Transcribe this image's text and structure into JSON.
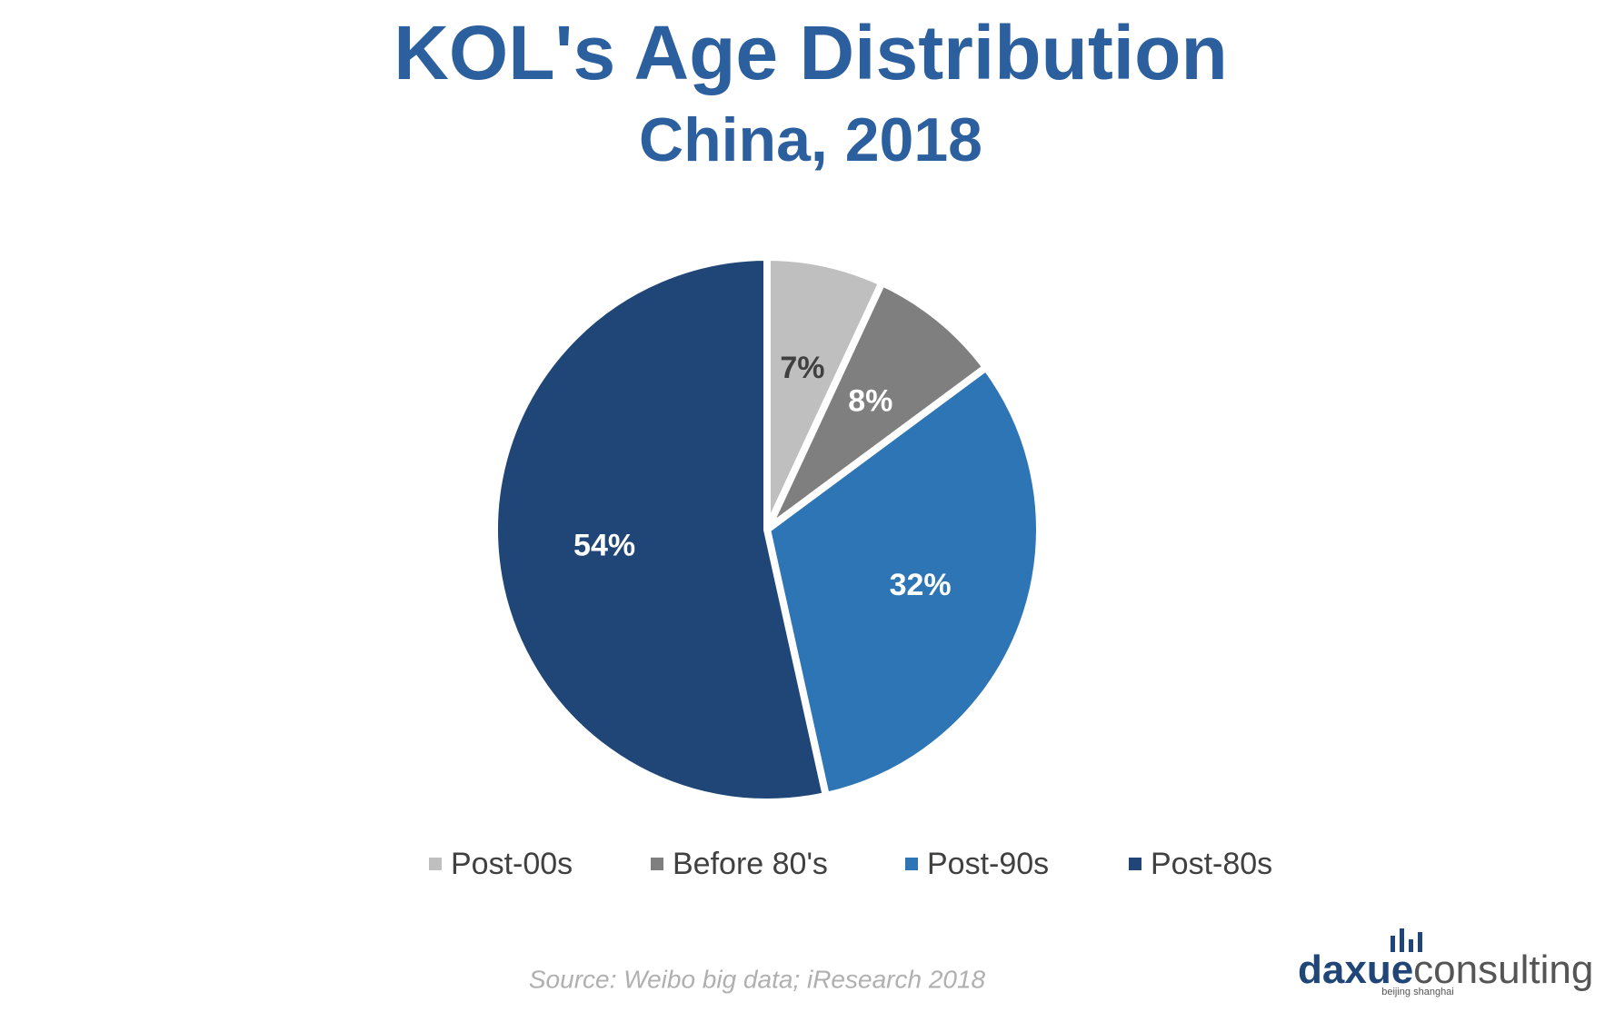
{
  "chart_data": {
    "type": "pie",
    "title": "KOL's Age Distribution",
    "subtitle": "China, 2018",
    "categories": [
      "Post-00s",
      "Before 80's",
      "Post-90s",
      "Post-80s"
    ],
    "values": [
      7,
      8,
      32,
      54
    ],
    "value_labels": [
      "7%",
      "8%",
      "32%",
      "54%"
    ],
    "colors": [
      "#bfbfbf",
      "#7f7f7f",
      "#2e75b6",
      "#1f4677"
    ],
    "legend": "bottom",
    "source": "Source: Weibo big data; iResearch 2018"
  },
  "logo": {
    "part1": "daxue",
    "part2": "consulting",
    "tagline": "beijing shanghai"
  }
}
